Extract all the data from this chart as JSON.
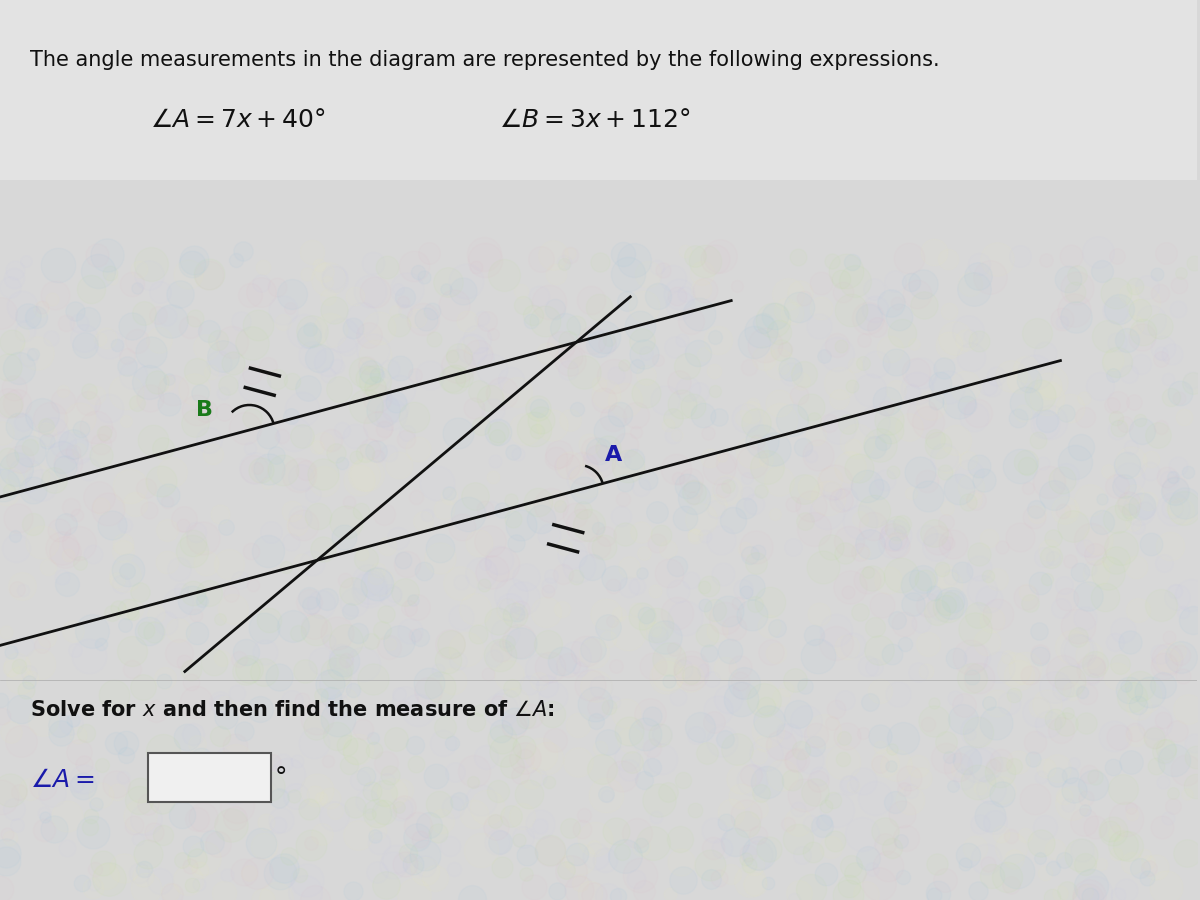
{
  "title_text": "The angle measurements in the diagram are represented by the following expressions.",
  "angle_A_expr": "$\\angle A = 7x + 40°$",
  "angle_B_expr": "$\\angle B = 3x + 112°$",
  "solve_text": "Solve for $x$ and then find the measure of $\\angle A$:",
  "answer_label": "$\\angle A =$",
  "bg_color": "#d8d8d8",
  "text_color": "#111111",
  "line_color": "#111111",
  "label_A_color": "#1a1aaa",
  "label_B_color": "#1a7a1a",
  "title_fontsize": 15,
  "expr_fontsize": 16,
  "solve_fontsize": 15,
  "answer_fontsize": 16
}
